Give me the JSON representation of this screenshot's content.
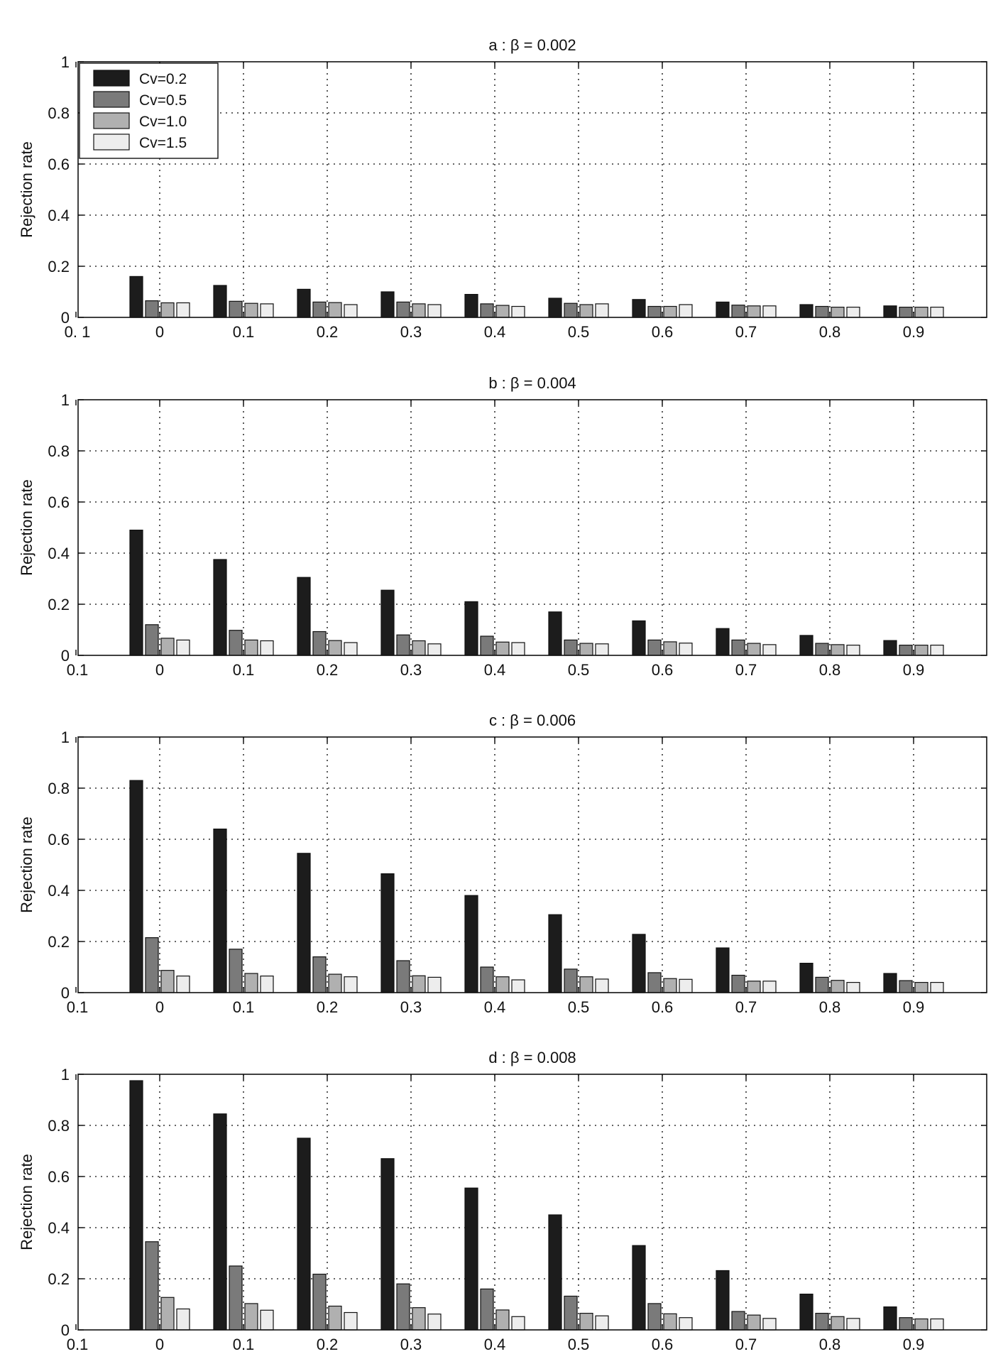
{
  "chart_data": [
    {
      "type": "bar",
      "title": "a : β = 0.002",
      "ylabel": "Rejection rate",
      "xlabel": "",
      "ylim": [
        0,
        1
      ],
      "y_ticks": [
        "0",
        "0.2",
        "0.4",
        "0.6",
        "0.8",
        "1"
      ],
      "x_tick_labels": [
        "0. 1",
        "0",
        "0.1",
        "0.2",
        "0.3",
        "0.4",
        "0.5",
        "0.6",
        "0.7",
        "0.8",
        "0.9"
      ],
      "categories": [
        "0",
        "0.1",
        "0.2",
        "0.3",
        "0.4",
        "0.5",
        "0.6",
        "0.7",
        "0.8",
        "0.9"
      ],
      "grid": true,
      "legend": true,
      "legend_position": "top-left",
      "series": [
        {
          "name": "Cv=0.2",
          "color": "#1c1c1c",
          "values": [
            0.16,
            0.125,
            0.11,
            0.1,
            0.09,
            0.075,
            0.07,
            0.06,
            0.05,
            0.045
          ]
        },
        {
          "name": "Cv=0.5",
          "color": "#7a7a7a",
          "values": [
            0.065,
            0.063,
            0.06,
            0.06,
            0.053,
            0.055,
            0.043,
            0.048,
            0.043,
            0.04
          ]
        },
        {
          "name": "Cv=1.0",
          "color": "#b0b0b0",
          "values": [
            0.057,
            0.055,
            0.058,
            0.053,
            0.047,
            0.05,
            0.043,
            0.045,
            0.04,
            0.04
          ]
        },
        {
          "name": "Cv=1.5",
          "color": "#ededed",
          "values": [
            0.057,
            0.053,
            0.05,
            0.05,
            0.043,
            0.053,
            0.05,
            0.045,
            0.04,
            0.04
          ]
        }
      ]
    },
    {
      "type": "bar",
      "title": "b : β = 0.004",
      "ylabel": "Rejection rate",
      "xlabel": "",
      "ylim": [
        0,
        1
      ],
      "y_ticks": [
        "0",
        "0.2",
        "0.4",
        "0.6",
        "0.8",
        "1"
      ],
      "x_tick_labels": [
        "0.1",
        "0",
        "0.1",
        "0.2",
        "0.3",
        "0.4",
        "0.5",
        "0.6",
        "0.7",
        "0.8",
        "0.9"
      ],
      "categories": [
        "0",
        "0.1",
        "0.2",
        "0.3",
        "0.4",
        "0.5",
        "0.6",
        "0.7",
        "0.8",
        "0.9"
      ],
      "grid": true,
      "legend": false,
      "series": [
        {
          "name": "Cv=0.2",
          "color": "#1c1c1c",
          "values": [
            0.49,
            0.375,
            0.305,
            0.255,
            0.21,
            0.17,
            0.135,
            0.105,
            0.078,
            0.058
          ]
        },
        {
          "name": "Cv=0.5",
          "color": "#7a7a7a",
          "values": [
            0.12,
            0.098,
            0.093,
            0.08,
            0.075,
            0.06,
            0.06,
            0.06,
            0.047,
            0.04
          ]
        },
        {
          "name": "Cv=1.0",
          "color": "#b0b0b0",
          "values": [
            0.067,
            0.06,
            0.058,
            0.057,
            0.052,
            0.047,
            0.053,
            0.047,
            0.042,
            0.04
          ]
        },
        {
          "name": "Cv=1.5",
          "color": "#ededed",
          "values": [
            0.06,
            0.057,
            0.05,
            0.045,
            0.05,
            0.045,
            0.048,
            0.042,
            0.04,
            0.04
          ]
        }
      ]
    },
    {
      "type": "bar",
      "title": "c : β = 0.006",
      "ylabel": "Rejection rate",
      "xlabel": "",
      "ylim": [
        0,
        1
      ],
      "y_ticks": [
        "0",
        "0.2",
        "0.4",
        "0.6",
        "0.8",
        "1"
      ],
      "x_tick_labels": [
        "0.1",
        "0",
        "0.1",
        "0.2",
        "0.3",
        "0.4",
        "0.5",
        "0.6",
        "0.7",
        "0.8",
        "0.9"
      ],
      "categories": [
        "0",
        "0.1",
        "0.2",
        "0.3",
        "0.4",
        "0.5",
        "0.6",
        "0.7",
        "0.8",
        "0.9"
      ],
      "grid": true,
      "legend": false,
      "series": [
        {
          "name": "Cv=0.2",
          "color": "#1c1c1c",
          "values": [
            0.83,
            0.64,
            0.545,
            0.465,
            0.38,
            0.305,
            0.228,
            0.175,
            0.115,
            0.075
          ]
        },
        {
          "name": "Cv=0.5",
          "color": "#7a7a7a",
          "values": [
            0.215,
            0.17,
            0.14,
            0.125,
            0.1,
            0.092,
            0.078,
            0.068,
            0.06,
            0.047
          ]
        },
        {
          "name": "Cv=1.0",
          "color": "#b0b0b0",
          "values": [
            0.087,
            0.075,
            0.072,
            0.066,
            0.062,
            0.062,
            0.055,
            0.045,
            0.048,
            0.04
          ]
        },
        {
          "name": "Cv=1.5",
          "color": "#ededed",
          "values": [
            0.065,
            0.065,
            0.062,
            0.06,
            0.05,
            0.053,
            0.052,
            0.045,
            0.04,
            0.04
          ]
        }
      ]
    },
    {
      "type": "bar",
      "title": "d : β = 0.008",
      "ylabel": "Rejection rate",
      "xlabel": "",
      "ylim": [
        0,
        1
      ],
      "y_ticks": [
        "0",
        "0.2",
        "0.4",
        "0.6",
        "0.8",
        "1"
      ],
      "x_tick_labels": [
        "0.1",
        "0",
        "0.1",
        "0.2",
        "0.3",
        "0.4",
        "0.5",
        "0.6",
        "0.7",
        "0.8",
        "0.9"
      ],
      "categories": [
        "0",
        "0.1",
        "0.2",
        "0.3",
        "0.4",
        "0.5",
        "0.6",
        "0.7",
        "0.8",
        "0.9"
      ],
      "grid": true,
      "legend": false,
      "series": [
        {
          "name": "Cv=0.2",
          "color": "#1c1c1c",
          "values": [
            0.975,
            0.845,
            0.75,
            0.67,
            0.555,
            0.45,
            0.33,
            0.232,
            0.14,
            0.09
          ]
        },
        {
          "name": "Cv=0.5",
          "color": "#7a7a7a",
          "values": [
            0.345,
            0.25,
            0.218,
            0.18,
            0.16,
            0.132,
            0.103,
            0.072,
            0.065,
            0.048
          ]
        },
        {
          "name": "Cv=1.0",
          "color": "#b0b0b0",
          "values": [
            0.127,
            0.103,
            0.093,
            0.087,
            0.078,
            0.065,
            0.063,
            0.058,
            0.052,
            0.043
          ]
        },
        {
          "name": "Cv=1.5",
          "color": "#ededed",
          "values": [
            0.082,
            0.077,
            0.068,
            0.062,
            0.052,
            0.055,
            0.048,
            0.045,
            0.045,
            0.043
          ]
        }
      ]
    }
  ]
}
